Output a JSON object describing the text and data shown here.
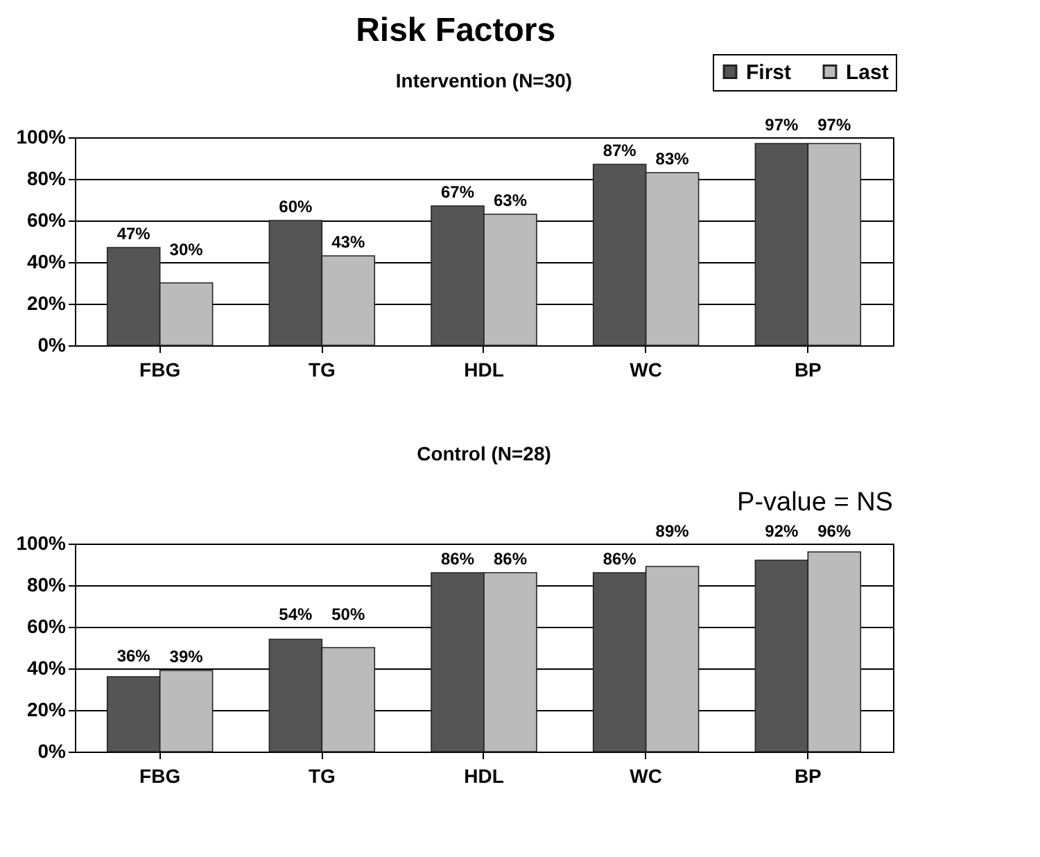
{
  "chart_data": [
    {
      "type": "bar",
      "title": "Risk Factors",
      "subtitle": "Intervention (N=30)",
      "categories": [
        "FBG",
        "TG",
        "HDL",
        "WC",
        "BP"
      ],
      "series": [
        {
          "name": "First",
          "color": "#555555",
          "values": [
            47,
            60,
            67,
            87,
            97
          ],
          "value_labels": [
            "47%",
            "60%",
            "67%",
            "87%",
            "97%"
          ]
        },
        {
          "name": "Last",
          "color": "#bbbbbb",
          "values": [
            30,
            43,
            63,
            83,
            97
          ],
          "value_labels": [
            "30%",
            "43%",
            "63%",
            "83%",
            "97%"
          ]
        }
      ],
      "ylim": [
        0,
        100
      ],
      "yticks": [
        {
          "value": 0,
          "label": "0%"
        },
        {
          "value": 20,
          "label": "20%"
        },
        {
          "value": 40,
          "label": "40%"
        },
        {
          "value": 60,
          "label": "60%"
        },
        {
          "value": 80,
          "label": "80%"
        },
        {
          "value": 100,
          "label": "100%"
        }
      ],
      "grid": "y",
      "legend": "top right"
    },
    {
      "type": "bar",
      "subtitle": "Control (N=28)",
      "annotations": [
        "P-value = NS"
      ],
      "categories": [
        "FBG",
        "TG",
        "HDL",
        "WC",
        "BP"
      ],
      "series": [
        {
          "name": "First",
          "color": "#555555",
          "values": [
            36,
            54,
            86,
            86,
            92
          ],
          "value_labels": [
            "36%",
            "54%",
            "86%",
            "86%",
            "92%"
          ]
        },
        {
          "name": "Last",
          "color": "#bbbbbb",
          "values": [
            39,
            50,
            86,
            89,
            96
          ],
          "value_labels": [
            "39%",
            "50%",
            "86%",
            "89%",
            "96%"
          ]
        }
      ],
      "ylim": [
        0,
        100
      ],
      "yticks": [
        {
          "value": 0,
          "label": "0%"
        },
        {
          "value": 20,
          "label": "20%"
        },
        {
          "value": 40,
          "label": "40%"
        },
        {
          "value": 60,
          "label": "60%"
        },
        {
          "value": 80,
          "label": "80%"
        },
        {
          "value": 100,
          "label": "100%"
        }
      ],
      "grid": "y",
      "legend": false
    }
  ]
}
